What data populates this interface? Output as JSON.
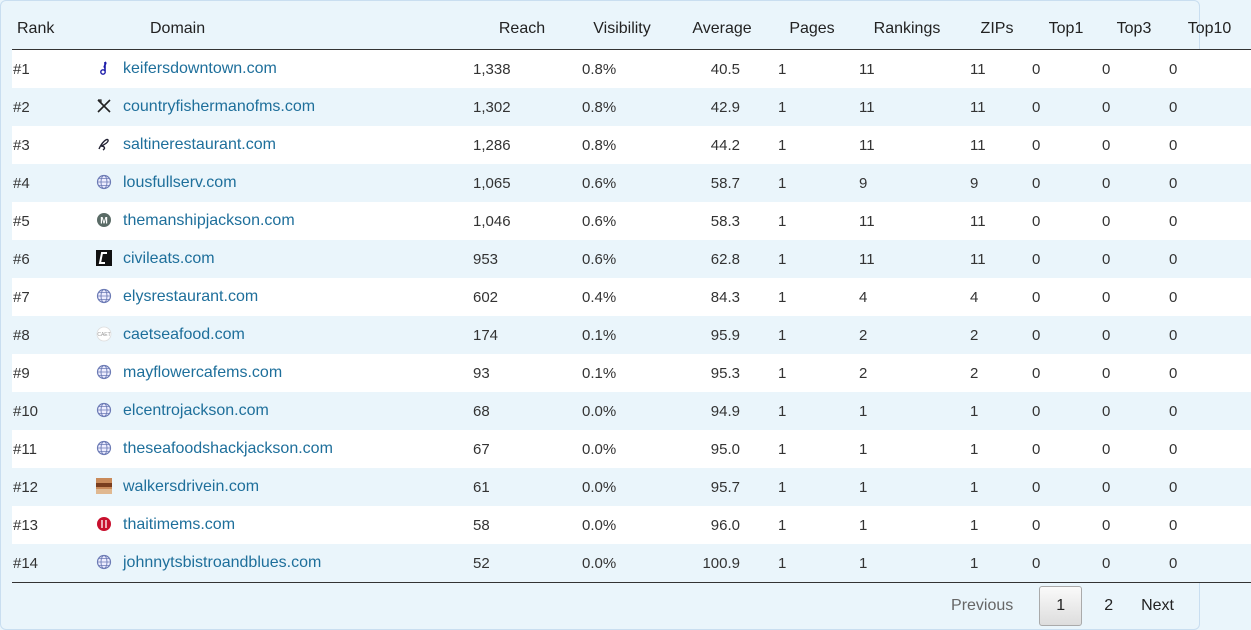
{
  "columns": {
    "rank": "Rank",
    "domain": "Domain",
    "reach": "Reach",
    "visibility": "Visibility",
    "average": "Average",
    "pages": "Pages",
    "rankings": "Rankings",
    "zips": "ZIPs",
    "top1": "Top1",
    "top3": "Top3",
    "top10": "Top10"
  },
  "rows": [
    {
      "rank": "#1",
      "icon": "music-note-icon",
      "domain": "keifersdowntown.com",
      "reach": "1,338",
      "visibility": "0.8%",
      "average": "40.5",
      "pages": "1",
      "rankings": "11",
      "zips": "11",
      "top1": "0",
      "top3": "0",
      "top10": "0"
    },
    {
      "rank": "#2",
      "icon": "fork-knife-icon",
      "domain": "countryfishermanofms.com",
      "reach": "1,302",
      "visibility": "0.8%",
      "average": "42.9",
      "pages": "1",
      "rankings": "11",
      "zips": "11",
      "top1": "0",
      "top3": "0",
      "top10": "0"
    },
    {
      "rank": "#3",
      "icon": "script-logo-icon",
      "domain": "saltinerestaurant.com",
      "reach": "1,286",
      "visibility": "0.8%",
      "average": "44.2",
      "pages": "1",
      "rankings": "11",
      "zips": "11",
      "top1": "0",
      "top3": "0",
      "top10": "0"
    },
    {
      "rank": "#4",
      "icon": "globe-icon",
      "domain": "lousfullserv.com",
      "reach": "1,065",
      "visibility": "0.6%",
      "average": "58.7",
      "pages": "1",
      "rankings": "9",
      "zips": "9",
      "top1": "0",
      "top3": "0",
      "top10": "0"
    },
    {
      "rank": "#5",
      "icon": "m-badge-icon",
      "domain": "themanshipjackson.com",
      "reach": "1,046",
      "visibility": "0.6%",
      "average": "58.3",
      "pages": "1",
      "rankings": "11",
      "zips": "11",
      "top1": "0",
      "top3": "0",
      "top10": "0"
    },
    {
      "rank": "#6",
      "icon": "civileats-logo-icon",
      "domain": "civileats.com",
      "reach": "953",
      "visibility": "0.6%",
      "average": "62.8",
      "pages": "1",
      "rankings": "11",
      "zips": "11",
      "top1": "0",
      "top3": "0",
      "top10": "0"
    },
    {
      "rank": "#7",
      "icon": "globe-icon",
      "domain": "elysrestaurant.com",
      "reach": "602",
      "visibility": "0.4%",
      "average": "84.3",
      "pages": "1",
      "rankings": "4",
      "zips": "4",
      "top1": "0",
      "top3": "0",
      "top10": "0"
    },
    {
      "rank": "#8",
      "icon": "caet-logo-icon",
      "domain": "caetseafood.com",
      "reach": "174",
      "visibility": "0.1%",
      "average": "95.9",
      "pages": "1",
      "rankings": "2",
      "zips": "2",
      "top1": "0",
      "top3": "0",
      "top10": "0"
    },
    {
      "rank": "#9",
      "icon": "globe-icon",
      "domain": "mayflowercafems.com",
      "reach": "93",
      "visibility": "0.1%",
      "average": "95.3",
      "pages": "1",
      "rankings": "2",
      "zips": "2",
      "top1": "0",
      "top3": "0",
      "top10": "0"
    },
    {
      "rank": "#10",
      "icon": "globe-icon",
      "domain": "elcentrojackson.com",
      "reach": "68",
      "visibility": "0.0%",
      "average": "94.9",
      "pages": "1",
      "rankings": "1",
      "zips": "1",
      "top1": "0",
      "top3": "0",
      "top10": "0"
    },
    {
      "rank": "#11",
      "icon": "globe-icon",
      "domain": "theseafoodshackjackson.com",
      "reach": "67",
      "visibility": "0.0%",
      "average": "95.0",
      "pages": "1",
      "rankings": "1",
      "zips": "1",
      "top1": "0",
      "top3": "0",
      "top10": "0"
    },
    {
      "rank": "#12",
      "icon": "photo-thumbnail-icon",
      "domain": "walkersdrivein.com",
      "reach": "61",
      "visibility": "0.0%",
      "average": "95.7",
      "pages": "1",
      "rankings": "1",
      "zips": "1",
      "top1": "0",
      "top3": "0",
      "top10": "0"
    },
    {
      "rank": "#13",
      "icon": "red-circle-logo-icon",
      "domain": "thaitimems.com",
      "reach": "58",
      "visibility": "0.0%",
      "average": "96.0",
      "pages": "1",
      "rankings": "1",
      "zips": "1",
      "top1": "0",
      "top3": "0",
      "top10": "0"
    },
    {
      "rank": "#14",
      "icon": "globe-icon",
      "domain": "johnnytsbistroandblues.com",
      "reach": "52",
      "visibility": "0.0%",
      "average": "100.9",
      "pages": "1",
      "rankings": "1",
      "zips": "1",
      "top1": "0",
      "top3": "0",
      "top10": "0"
    }
  ],
  "pagination": {
    "previous": "Previous",
    "pages": [
      "1",
      "2"
    ],
    "current": "1",
    "next": "Next"
  },
  "colors": {
    "link": "#1e6f9b",
    "background": "#eaf5fb",
    "row_alt": "#ffffff"
  }
}
